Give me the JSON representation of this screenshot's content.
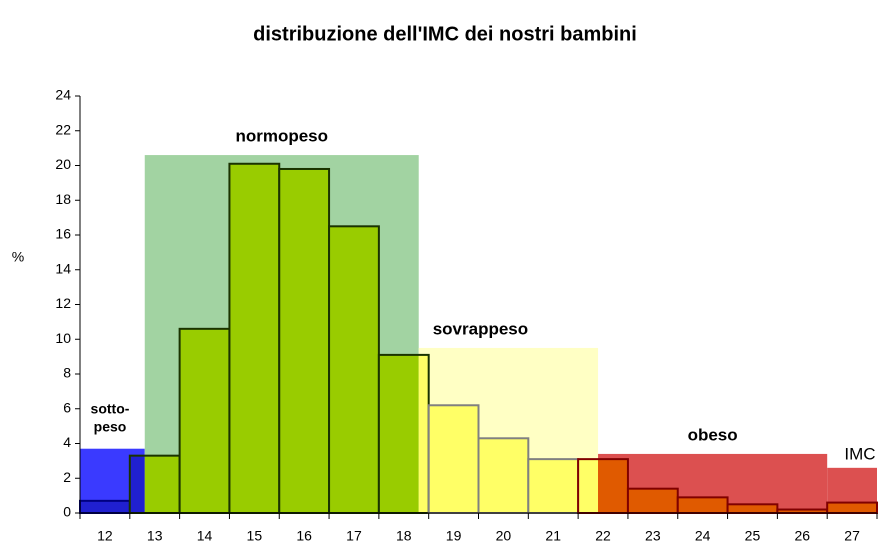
{
  "chart_data": {
    "type": "histogram",
    "title": "distribuzione dell'IMC dei nostri bambini",
    "ylabel": "%",
    "xlabel": "IMC",
    "bins": [
      11.5,
      12.5,
      13.5,
      14.5,
      15.5,
      16.5,
      17.5,
      18.5,
      19.5,
      20.5,
      21.5,
      22.5,
      23.5,
      24.5,
      25.5,
      26.5,
      27.5
    ],
    "categories": [
      "12",
      "13",
      "14",
      "15",
      "16",
      "17",
      "18",
      "19",
      "20",
      "21",
      "22",
      "23",
      "24",
      "25",
      "26",
      "27"
    ],
    "values": [
      0.7,
      3.3,
      10.6,
      20.1,
      19.8,
      16.5,
      9.1,
      6.2,
      4.3,
      3.1,
      3.1,
      1.4,
      0.9,
      0.5,
      0.2,
      0.6
    ],
    "xlim": [
      11.5,
      27.5
    ],
    "ylim": [
      0,
      24
    ],
    "yticks": [
      0,
      2,
      4,
      6,
      8,
      10,
      12,
      14,
      16,
      18,
      20,
      22,
      24
    ],
    "zones": [
      {
        "label": [
          "sotto-",
          "peso"
        ],
        "from": 11.5,
        "to": 12.8,
        "height": 3.7,
        "color": "#3a3aff",
        "bar_color": "#2020d0",
        "edge_color": "#000080"
      },
      {
        "label": [
          "normopeso"
        ],
        "from": 12.8,
        "to": 18.3,
        "height": 20.6,
        "color": "#a2d3a2",
        "bar_color": "#99cc00",
        "edge_color": "#1a3300"
      },
      {
        "label": [
          "sovrappeso"
        ],
        "from": 18.3,
        "to": 21.9,
        "height": 9.5,
        "color": "#ffffc4",
        "bar_color": "#ffff66",
        "edge_color": "#808080"
      },
      {
        "label": [
          "obeso"
        ],
        "from": 21.9,
        "to": 26.5,
        "height": 3.4,
        "color": "#dc5050",
        "bar_color": "#e05a00",
        "edge_color": "#800000"
      },
      {
        "from": 26.5,
        "to": 27.5,
        "height": 2.6,
        "color": "#dc5050",
        "bar_color": "#e05a00",
        "edge_color": "#800000"
      }
    ]
  }
}
